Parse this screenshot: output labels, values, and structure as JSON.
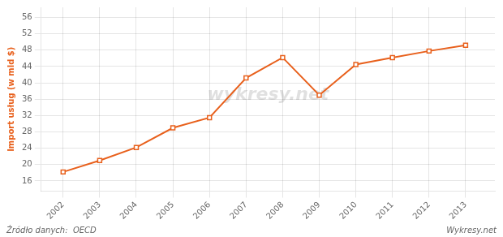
{
  "chart_data": {
    "type": "line",
    "x": [
      2002,
      2003,
      2004,
      2005,
      2006,
      2007,
      2008,
      2009,
      2010,
      2011,
      2012,
      2013
    ],
    "values": [
      18.2,
      21.0,
      24.2,
      29.0,
      31.5,
      41.2,
      46.2,
      37.0,
      44.5,
      46.2,
      47.8,
      49.2
    ],
    "color": "#e8601c",
    "marker": "square",
    "y_label": "Import usług (w mld $)",
    "xlim": [
      2001.4,
      2013.8
    ],
    "xticks": [
      2002,
      2003,
      2004,
      2005,
      2006,
      2007,
      2008,
      2009,
      2010,
      2011,
      2012,
      2013
    ],
    "ylim": [
      13.5,
      58.5
    ],
    "yticks": [
      16,
      20,
      24,
      28,
      32,
      36,
      40,
      44,
      48,
      52,
      56
    ],
    "grid": true,
    "annotations": [
      "wykresy.net",
      "Źródło danych:  OECD",
      "Wykresy.net"
    ]
  }
}
